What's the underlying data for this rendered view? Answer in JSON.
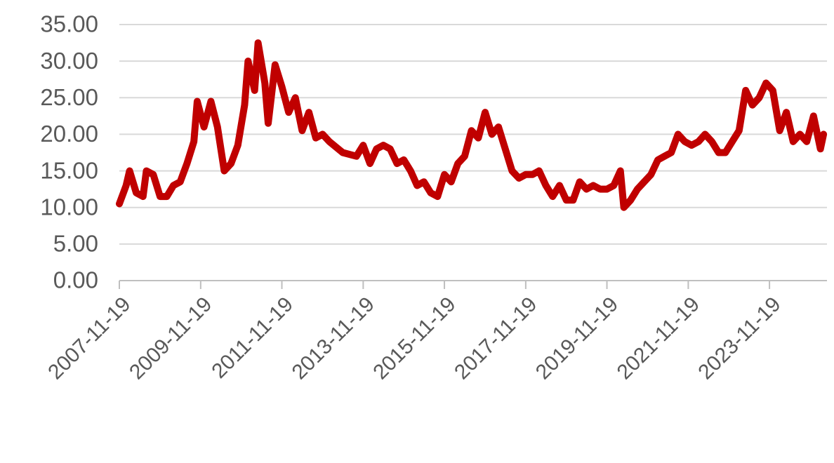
{
  "chart_data": {
    "type": "line",
    "color": "#c00000",
    "grid": true,
    "x": [
      "2007-11-19",
      "2008-01-19",
      "2008-02-19",
      "2008-04-19",
      "2008-06-19",
      "2008-07-19",
      "2008-09-19",
      "2008-11-19",
      "2009-01-19",
      "2009-03-19",
      "2009-05-19",
      "2009-07-19",
      "2009-09-19",
      "2009-10-19",
      "2009-12-19",
      "2010-02-19",
      "2010-04-19",
      "2010-06-19",
      "2010-08-19",
      "2010-10-19",
      "2010-12-19",
      "2011-01-19",
      "2011-03-19",
      "2011-04-19",
      "2011-06-19",
      "2011-07-19",
      "2011-09-19",
      "2011-11-19",
      "2012-01-19",
      "2012-03-19",
      "2012-05-19",
      "2012-07-19",
      "2012-09-19",
      "2012-11-19",
      "2013-01-19",
      "2013-05-19",
      "2013-09-19",
      "2013-11-19",
      "2014-01-19",
      "2014-03-19",
      "2014-05-19",
      "2014-07-19",
      "2014-09-19",
      "2014-11-19",
      "2015-01-19",
      "2015-03-19",
      "2015-05-19",
      "2015-07-19",
      "2015-09-19",
      "2015-11-19",
      "2016-01-19",
      "2016-03-19",
      "2016-05-19",
      "2016-07-19",
      "2016-09-19",
      "2016-11-19",
      "2017-01-19",
      "2017-03-19",
      "2017-05-19",
      "2017-07-19",
      "2017-09-19",
      "2017-11-19",
      "2018-01-19",
      "2018-03-19",
      "2018-05-19",
      "2018-07-19",
      "2018-09-19",
      "2018-11-19",
      "2019-01-19",
      "2019-03-19",
      "2019-05-19",
      "2019-07-19",
      "2019-09-19",
      "2019-11-19",
      "2020-01-19",
      "2020-03-19",
      "2020-04-19",
      "2020-06-19",
      "2020-08-19",
      "2020-10-19",
      "2020-12-19",
      "2021-02-19",
      "2021-04-19",
      "2021-06-19",
      "2021-08-19",
      "2021-10-19",
      "2021-12-19",
      "2022-02-19",
      "2022-04-19",
      "2022-06-19",
      "2022-08-19",
      "2022-10-19",
      "2022-12-19",
      "2023-02-19",
      "2023-04-19",
      "2023-06-19",
      "2023-08-19",
      "2023-10-19",
      "2023-12-19",
      "2024-02-19",
      "2024-04-19",
      "2024-06-19",
      "2024-08-19",
      "2024-10-19",
      "2024-12-19",
      "2025-02-19",
      "2025-03-19"
    ],
    "values": [
      10.5,
      13,
      15,
      12,
      11.5,
      15,
      14.5,
      11.5,
      11.5,
      13,
      13.5,
      16,
      19,
      24.5,
      21,
      24.5,
      21,
      15,
      16,
      18.5,
      24,
      30,
      26,
      32.5,
      27,
      21.5,
      29.5,
      26.5,
      23,
      25,
      20.5,
      23,
      19.5,
      20,
      19,
      17.5,
      17,
      18.5,
      16,
      18,
      18.5,
      18,
      16,
      16.5,
      15,
      13,
      13.5,
      12,
      11.5,
      14.5,
      13.5,
      16,
      17,
      20.5,
      19.5,
      23,
      20,
      21,
      18,
      15,
      14,
      14.5,
      14.5,
      15,
      13,
      11.5,
      13,
      11,
      11,
      13.5,
      12.5,
      13,
      12.5,
      12.5,
      13,
      15,
      10,
      11,
      12.5,
      13.5,
      14.5,
      16.5,
      17,
      17.5,
      20,
      19,
      18.5,
      19,
      20,
      19,
      17.5,
      17.5,
      19,
      20.5,
      26,
      24,
      25,
      27,
      26,
      20.5,
      23,
      19,
      20,
      19,
      22.5,
      18,
      20
    ],
    "xlim": [
      "2007-11-19",
      "2025-04-19"
    ],
    "xticks": [
      "2007-11-19",
      "2009-11-19",
      "2011-11-19",
      "2013-11-19",
      "2015-11-19",
      "2017-11-19",
      "2019-11-19",
      "2021-11-19",
      "2023-11-19"
    ],
    "ylim": [
      0,
      35
    ],
    "yticks": [
      {
        "value": 0,
        "label": "0.00"
      },
      {
        "value": 5,
        "label": "5.00"
      },
      {
        "value": 10,
        "label": "10.00"
      },
      {
        "value": 15,
        "label": "15.00"
      },
      {
        "value": 20,
        "label": "20.00"
      },
      {
        "value": 25,
        "label": "25.00"
      },
      {
        "value": 30,
        "label": "30.00"
      },
      {
        "value": 35,
        "label": "35.00"
      }
    ]
  }
}
